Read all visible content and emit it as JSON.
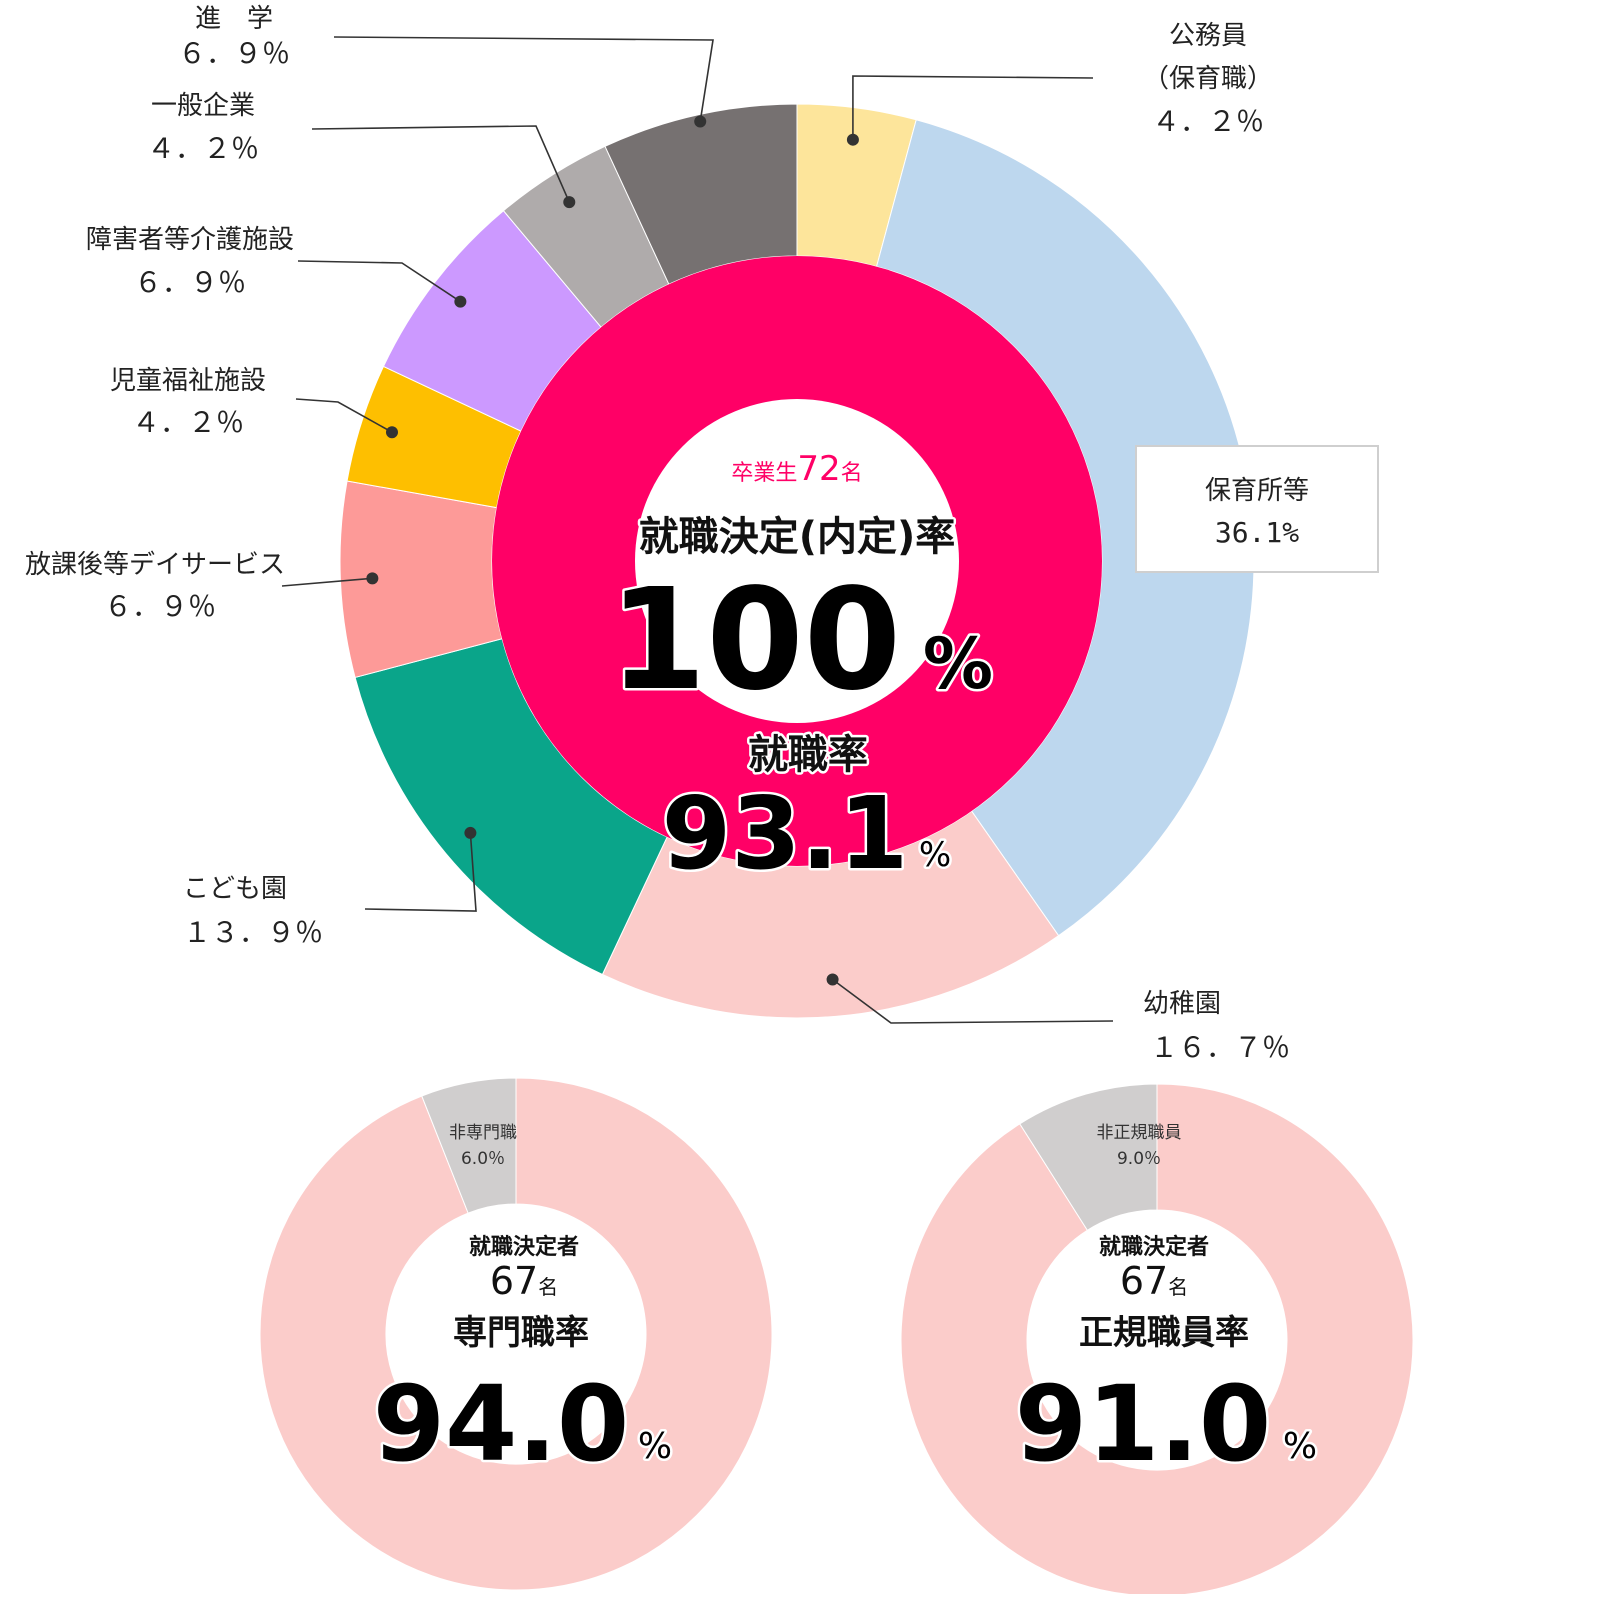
{
  "chart_data": [
    {
      "type": "pie",
      "variant": "donut",
      "slices": [
        {
          "label_lines": [
            "公務員",
            "（保育職）"
          ],
          "value_text": "４．２％",
          "value": 4.2,
          "color": "#FDE59B"
        },
        {
          "label_lines": [
            "保育所等"
          ],
          "value_text": "36.1%",
          "value": 36.1,
          "color": "#BDD7EE",
          "boxed": true
        },
        {
          "label_lines": [
            "幼稚園"
          ],
          "value_text": "１６．７％",
          "value": 16.7,
          "color": "#FBCCCA"
        },
        {
          "label_lines": [
            "こども園"
          ],
          "value_text": "１３．９％",
          "value": 13.9,
          "color": "#0AA58A"
        },
        {
          "label_lines": [
            "放課後等デイサービス"
          ],
          "value_text": "６．９％",
          "value": 6.9,
          "color": "#FD9A98"
        },
        {
          "label_lines": [
            "児童福祉施設"
          ],
          "value_text": "４．２％",
          "value": 4.2,
          "color": "#FEBF00"
        },
        {
          "label_lines": [
            "障害者等介護施設"
          ],
          "value_text": "６．９％",
          "value": 6.9,
          "color": "#CC99FF"
        },
        {
          "label_lines": [
            "一般企業"
          ],
          "value_text": "４．２％",
          "value": 4.2,
          "color": "#AFABAB"
        },
        {
          "label_lines": [
            "進　学"
          ],
          "value_text": "６．９％",
          "value": 6.9,
          "color": "#767171"
        }
      ],
      "inner_ring": {
        "value": 100,
        "color": "#FF0066"
      },
      "center": {
        "graduates_prefix": "卒業生",
        "graduates_count": "72",
        "graduates_suffix": "名",
        "rate_title": "就職決定(内定)率",
        "rate_value": "100",
        "rate_unit": "%",
        "employment_title": "就職率",
        "employment_value": "93.1",
        "employment_unit": "%"
      }
    },
    {
      "type": "pie",
      "variant": "donut",
      "slices": [
        {
          "label": "専門職",
          "value": 94.0,
          "color": "#FBCCCA"
        },
        {
          "label": "非専門職",
          "value_text": "6.0％",
          "value": 6.0,
          "color": "#D0CECE"
        }
      ],
      "center": {
        "title": "就職決定者",
        "count": "67",
        "count_suffix": "名",
        "rate_title": "専門職率",
        "rate_value": "94.0",
        "rate_unit": "%"
      }
    },
    {
      "type": "pie",
      "variant": "donut",
      "slices": [
        {
          "label": "正規職員",
          "value": 91.0,
          "color": "#FBCCCA"
        },
        {
          "label": "非正規職員",
          "value_text": "9.0％",
          "value": 9.0,
          "color": "#D0CECE"
        }
      ],
      "center": {
        "title": "就職決定者",
        "count": "67",
        "count_suffix": "名",
        "rate_title": "正規職員率",
        "rate_value": "91.0",
        "rate_unit": "%"
      }
    }
  ],
  "colors": {
    "accent": "#FF0066",
    "text": "#222222",
    "leader": "#333333"
  }
}
